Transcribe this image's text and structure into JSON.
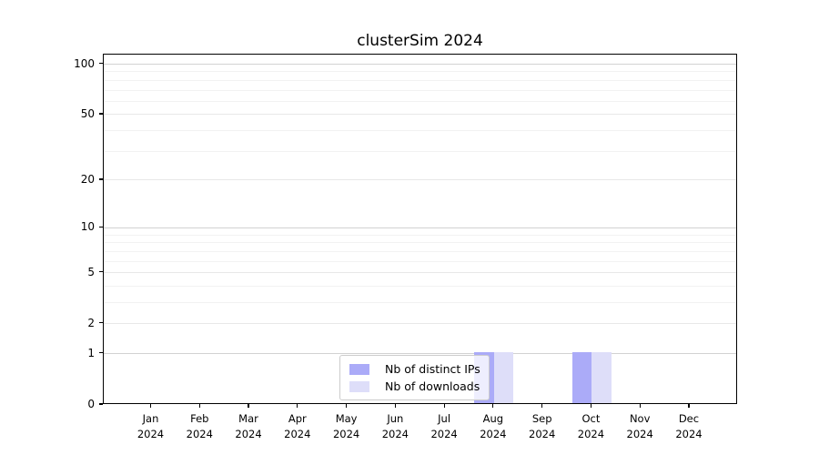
{
  "chart_data": {
    "type": "bar",
    "title": "clusterSim 2024",
    "xlabel": "",
    "ylabel": "",
    "categories": [
      "Jan",
      "Feb",
      "Mar",
      "Apr",
      "May",
      "Jun",
      "Jul",
      "Aug",
      "Sep",
      "Oct",
      "Nov",
      "Dec"
    ],
    "year": "2024",
    "series": [
      {
        "key": "distinct-ips",
        "name": "Nb of distinct IPs",
        "color": "#ababf8",
        "values": [
          0,
          0,
          0,
          0,
          0,
          0,
          0,
          1,
          0,
          1,
          0,
          0
        ]
      },
      {
        "key": "downloads",
        "name": "Nb of downloads",
        "color": "#dedef9",
        "values": [
          0,
          0,
          0,
          0,
          0,
          0,
          0,
          1,
          0,
          1,
          0,
          0
        ]
      }
    ],
    "y_ticks": [
      0,
      1,
      2,
      5,
      10,
      20,
      50,
      100
    ],
    "y_major_gridlines": [
      1,
      10,
      100
    ],
    "y_mid_gridlines": [
      2,
      5,
      20,
      50
    ],
    "y_minor_gridlines": [
      3,
      4,
      6,
      7,
      8,
      9,
      30,
      40,
      60,
      70,
      80,
      90
    ],
    "ylim": [
      0,
      114
    ],
    "scale": "log1p",
    "grid": true,
    "legend_position": "lower center",
    "colors": {
      "major_grid": "#d2d2d2",
      "mid_grid": "#e8e8e8",
      "minor_grid": "#f2f2f2",
      "axis": "#000000",
      "background": "#ffffff"
    }
  }
}
